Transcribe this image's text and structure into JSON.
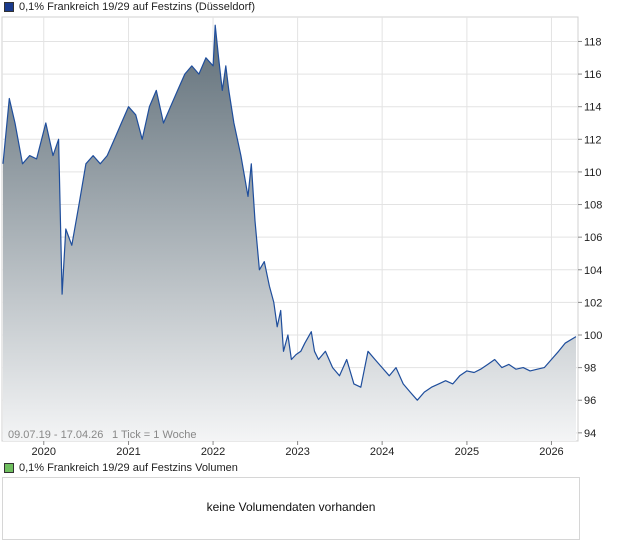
{
  "legend": {
    "price_label": "0,1% Frankreich 19/29 auf Festzins (Düsseldorf)",
    "price_color": "#1a3a8c",
    "volume_label": "0,1% Frankreich 19/29 auf Festzins Volumen",
    "volume_color": "#6fbf5f"
  },
  "footer": {
    "range_text": "09.07.19 - 17.04.26",
    "tick_text": "1 Tick = 1 Woche"
  },
  "volume": {
    "message": "keine Volumendaten vorhanden"
  },
  "chart_data": {
    "type": "area",
    "x_labels": [
      "2020",
      "2021",
      "2022",
      "2023",
      "2024",
      "2025",
      "2026"
    ],
    "y_ticks": [
      94,
      96,
      98,
      100,
      102,
      104,
      106,
      108,
      110,
      112,
      114,
      116,
      118
    ],
    "ylim": [
      93.5,
      119.5
    ],
    "xlim": [
      "2019-07-09",
      "2026-04-17"
    ],
    "grid": true,
    "line_color": "#1f4e9c",
    "fill_top_color": "#5f6e78",
    "fill_bottom_color": "#f4f5f6",
    "series": [
      {
        "x": [
          "2019-07-09",
          "2019-08-05",
          "2019-08-30",
          "2019-10-01",
          "2019-11-01",
          "2019-12-01",
          "2020-01-10",
          "2020-02-10",
          "2020-03-05",
          "2020-03-20",
          "2020-04-05",
          "2020-05-01",
          "2020-06-01",
          "2020-07-01",
          "2020-08-01",
          "2020-09-01",
          "2020-10-01",
          "2020-11-01",
          "2020-12-01",
          "2021-01-01",
          "2021-02-01",
          "2021-03-01",
          "2021-04-01",
          "2021-05-01",
          "2021-06-01",
          "2021-07-01",
          "2021-08-01",
          "2021-09-01",
          "2021-10-01",
          "2021-11-01",
          "2021-12-01",
          "2022-01-01",
          "2022-01-10",
          "2022-01-25",
          "2022-02-10",
          "2022-02-25",
          "2022-03-10",
          "2022-04-01",
          "2022-05-01",
          "2022-06-01",
          "2022-06-15",
          "2022-07-01",
          "2022-07-20",
          "2022-08-10",
          "2022-09-01",
          "2022-09-20",
          "2022-10-05",
          "2022-10-20",
          "2022-11-01",
          "2022-11-20",
          "2022-12-05",
          "2022-12-25",
          "2023-01-15",
          "2023-02-01",
          "2023-03-01",
          "2023-03-15",
          "2023-04-01",
          "2023-05-01",
          "2023-06-01",
          "2023-07-01",
          "2023-08-01",
          "2023-09-01",
          "2023-10-01",
          "2023-11-01",
          "2023-12-01",
          "2024-01-01",
          "2024-02-01",
          "2024-03-01",
          "2024-04-01",
          "2024-05-01",
          "2024-06-01",
          "2024-07-01",
          "2024-08-01",
          "2024-09-01",
          "2024-10-01",
          "2024-11-01",
          "2024-12-01",
          "2025-01-01",
          "2025-02-01",
          "2025-03-01",
          "2025-04-01",
          "2025-05-01",
          "2025-06-01",
          "2025-07-01",
          "2025-08-01",
          "2025-09-01",
          "2025-10-01",
          "2025-11-01",
          "2025-12-01",
          "2026-01-01",
          "2026-02-01",
          "2026-03-01",
          "2026-04-17"
        ],
        "y": [
          110.5,
          114.5,
          113.0,
          110.5,
          111.0,
          110.8,
          113.0,
          111.0,
          112.0,
          102.5,
          106.5,
          105.5,
          108.0,
          110.5,
          111.0,
          110.5,
          111.0,
          112.0,
          113.0,
          114.0,
          113.5,
          112.0,
          114.0,
          115.0,
          113.0,
          114.0,
          115.0,
          116.0,
          116.5,
          116.0,
          117.0,
          116.5,
          119.0,
          117.0,
          115.0,
          116.5,
          115.0,
          113.0,
          111.0,
          108.5,
          110.5,
          107.0,
          104.0,
          104.5,
          103.0,
          102.0,
          100.5,
          101.5,
          99.0,
          100.0,
          98.5,
          98.8,
          99.0,
          99.5,
          100.2,
          99.0,
          98.5,
          99.0,
          98.0,
          97.5,
          98.5,
          97.0,
          96.8,
          99.0,
          98.5,
          98.0,
          97.5,
          98.0,
          97.0,
          96.5,
          96.0,
          96.5,
          96.8,
          97.0,
          97.2,
          97.0,
          97.5,
          97.8,
          97.7,
          97.9,
          98.2,
          98.5,
          98.0,
          98.2,
          97.9,
          98.0,
          97.8,
          97.9,
          98.0,
          98.5,
          99.0,
          99.5,
          99.9
        ]
      }
    ]
  }
}
